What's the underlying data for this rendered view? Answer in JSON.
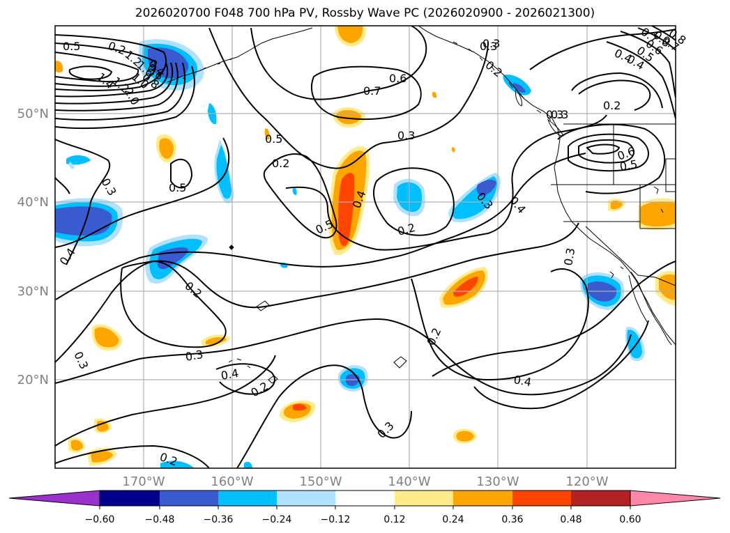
{
  "title": "2026020700 F048 700 hPa PV, Rossby Wave PC (2026020900 - 2026021300)",
  "map": {
    "projection": "PlateCarree",
    "lon_ticks": [
      "170°W",
      "160°W",
      "150°W",
      "140°W",
      "130°W",
      "120°W"
    ],
    "lat_ticks": [
      "50°N",
      "40°N",
      "30°N",
      "20°N"
    ],
    "contour_labels": [
      "0.5",
      "0.2",
      "0.3",
      "0.2",
      "0.4",
      "0.7",
      "0.8",
      "1.2",
      "1.6",
      "2.0",
      "1.4",
      "1.2",
      "1.0",
      "0.8",
      "0.6",
      "0.4",
      "0.3",
      "0.7",
      "0.6",
      "0.3",
      "0.4",
      "0.5",
      "0.6",
      "0.7",
      "0.8",
      "0.2",
      "0.3",
      "0.6",
      "0.5",
      "0.5",
      "0.3",
      "0.5",
      "0.4",
      "0.3",
      "0.4",
      "0.2",
      "0.5",
      "0.4",
      "0.2",
      "0.3",
      "0.2",
      "0.4",
      "0.2",
      "0.3",
      "0.3",
      "0.2",
      "0.3",
      "0.4",
      "0.3",
      "0.2"
    ]
  },
  "colorbar": {
    "ticks": [
      "−0.60",
      "−0.48",
      "−0.36",
      "−0.24",
      "−0.12",
      "0.12",
      "0.24",
      "0.36",
      "0.48",
      "0.60"
    ],
    "colors": [
      "#9932cc",
      "#00008b",
      "#3a5bd0",
      "#00bfff",
      "#b0e2ff",
      "#ffffff",
      "#ffeb8c",
      "#ffa500",
      "#ff4500",
      "#b22222",
      "#ff88aa"
    ]
  },
  "colors": {
    "grid": "#b0b0b0",
    "tick_label": "#808080",
    "contour": "#000000"
  }
}
